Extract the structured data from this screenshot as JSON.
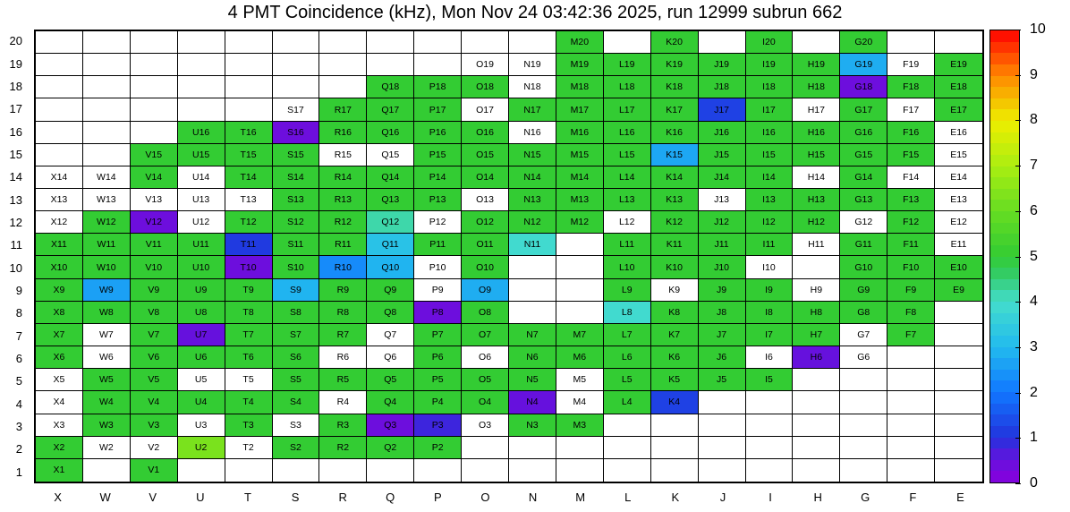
{
  "chart_data": {
    "type": "heatmap",
    "title": "4 PMT Coincidence (kHz), Mon Nov 24 03:42:36 2025, run 12999 subrun 662",
    "columns": [
      "X",
      "W",
      "V",
      "U",
      "T",
      "S",
      "R",
      "Q",
      "P",
      "O",
      "N",
      "M",
      "L",
      "K",
      "J",
      "I",
      "H",
      "G",
      "F",
      "E"
    ],
    "row_min": 1,
    "row_max": 20,
    "colorbar": {
      "min": 0,
      "max": 10,
      "tick_labels": [
        "0",
        "1",
        "2",
        "3",
        "4",
        "5",
        "6",
        "7",
        "8",
        "9",
        "10"
      ]
    },
    "empty_color": "#ffffff",
    "grid_line_color": "#000000",
    "palette_stops": [
      [
        0.0,
        "#8800dd"
      ],
      [
        0.5,
        "#6611dd"
      ],
      [
        1.0,
        "#2233dd"
      ],
      [
        2.0,
        "#1177ff"
      ],
      [
        3.0,
        "#22bbee"
      ],
      [
        4.0,
        "#44ddcc"
      ],
      [
        4.6,
        "#33cc66"
      ],
      [
        5.0,
        "#33cc33"
      ],
      [
        6.0,
        "#66dd22"
      ],
      [
        7.0,
        "#aaee11"
      ],
      [
        8.0,
        "#eeee00"
      ],
      [
        9.0,
        "#ff8800"
      ],
      [
        10.0,
        "#ff0000"
      ]
    ],
    "cells": [
      [
        "M20",
        5
      ],
      [
        "K20",
        5
      ],
      [
        "I20",
        5
      ],
      [
        "G20",
        5
      ],
      [
        "O19",
        null
      ],
      [
        "N19",
        null
      ],
      [
        "M19",
        5
      ],
      [
        "L19",
        5
      ],
      [
        "K19",
        5
      ],
      [
        "J19",
        5
      ],
      [
        "I19",
        5
      ],
      [
        "H19",
        5
      ],
      [
        "G19",
        2.8
      ],
      [
        "F19",
        null
      ],
      [
        "E19",
        5
      ],
      [
        "Q18",
        5
      ],
      [
        "P18",
        5
      ],
      [
        "O18",
        5
      ],
      [
        "N18",
        null
      ],
      [
        "M18",
        5
      ],
      [
        "L18",
        5
      ],
      [
        "K18",
        5
      ],
      [
        "J18",
        5
      ],
      [
        "I18",
        5
      ],
      [
        "H18",
        5
      ],
      [
        "G18",
        0.4
      ],
      [
        "F18",
        5
      ],
      [
        "E18",
        5
      ],
      [
        "S17",
        null
      ],
      [
        "R17",
        5
      ],
      [
        "Q17",
        5
      ],
      [
        "P17",
        5
      ],
      [
        "O17",
        null
      ],
      [
        "N17",
        5
      ],
      [
        "M17",
        5
      ],
      [
        "L17",
        5
      ],
      [
        "K17",
        5
      ],
      [
        "J17",
        1.2
      ],
      [
        "I17",
        5
      ],
      [
        "H17",
        null
      ],
      [
        "G17",
        5
      ],
      [
        "F17",
        null
      ],
      [
        "E17",
        5
      ],
      [
        "U16",
        5
      ],
      [
        "T16",
        5
      ],
      [
        "S16",
        0.4
      ],
      [
        "R16",
        5
      ],
      [
        "Q16",
        5
      ],
      [
        "P16",
        5
      ],
      [
        "O16",
        5
      ],
      [
        "N16",
        null
      ],
      [
        "M16",
        5
      ],
      [
        "L16",
        5
      ],
      [
        "K16",
        5
      ],
      [
        "J16",
        5
      ],
      [
        "I16",
        5
      ],
      [
        "H16",
        5
      ],
      [
        "G16",
        5
      ],
      [
        "F16",
        5
      ],
      [
        "E16",
        null
      ],
      [
        "V15",
        5
      ],
      [
        "U15",
        5
      ],
      [
        "T15",
        5
      ],
      [
        "S15",
        5
      ],
      [
        "R15",
        null
      ],
      [
        "Q15",
        null
      ],
      [
        "P15",
        5
      ],
      [
        "O15",
        5
      ],
      [
        "N15",
        5
      ],
      [
        "M15",
        5
      ],
      [
        "L15",
        5
      ],
      [
        "K15",
        2.7
      ],
      [
        "J15",
        5
      ],
      [
        "I15",
        5
      ],
      [
        "H15",
        5
      ],
      [
        "G15",
        5
      ],
      [
        "F15",
        5
      ],
      [
        "E15",
        null
      ],
      [
        "X14",
        null
      ],
      [
        "W14",
        null
      ],
      [
        "V14",
        5
      ],
      [
        "U14",
        null
      ],
      [
        "T14",
        5
      ],
      [
        "S14",
        5
      ],
      [
        "R14",
        5
      ],
      [
        "Q14",
        5
      ],
      [
        "P14",
        5
      ],
      [
        "O14",
        5
      ],
      [
        "N14",
        5
      ],
      [
        "M14",
        5
      ],
      [
        "L14",
        5
      ],
      [
        "K14",
        5
      ],
      [
        "J14",
        5
      ],
      [
        "I14",
        5
      ],
      [
        "H14",
        null
      ],
      [
        "G14",
        5
      ],
      [
        "F14",
        null
      ],
      [
        "E14",
        null
      ],
      [
        "X13",
        null
      ],
      [
        "W13",
        null
      ],
      [
        "V13",
        null
      ],
      [
        "U13",
        null
      ],
      [
        "T13",
        null
      ],
      [
        "S13",
        5
      ],
      [
        "R13",
        5
      ],
      [
        "Q13",
        5
      ],
      [
        "P13",
        5
      ],
      [
        "O13",
        null
      ],
      [
        "N13",
        5
      ],
      [
        "M13",
        5
      ],
      [
        "L13",
        5
      ],
      [
        "K13",
        5
      ],
      [
        "J13",
        null
      ],
      [
        "I13",
        5
      ],
      [
        "H13",
        5
      ],
      [
        "G13",
        5
      ],
      [
        "F13",
        5
      ],
      [
        "E13",
        null
      ],
      [
        "X12",
        null
      ],
      [
        "W12",
        5
      ],
      [
        "V12",
        0.4
      ],
      [
        "U12",
        null
      ],
      [
        "T12",
        5
      ],
      [
        "S12",
        5
      ],
      [
        "R12",
        5
      ],
      [
        "Q12",
        4.2
      ],
      [
        "P12",
        null
      ],
      [
        "O12",
        5
      ],
      [
        "N12",
        5
      ],
      [
        "M12",
        5
      ],
      [
        "L12",
        null
      ],
      [
        "K12",
        5
      ],
      [
        "J12",
        5
      ],
      [
        "I12",
        5
      ],
      [
        "H12",
        5
      ],
      [
        "G12",
        null
      ],
      [
        "F12",
        5
      ],
      [
        "E12",
        null
      ],
      [
        "X11",
        5
      ],
      [
        "W11",
        5
      ],
      [
        "V11",
        5
      ],
      [
        "U11",
        5
      ],
      [
        "T11",
        1.1
      ],
      [
        "S11",
        5
      ],
      [
        "R11",
        5
      ],
      [
        "Q11",
        3.2
      ],
      [
        "P11",
        5
      ],
      [
        "O11",
        5
      ],
      [
        "N11",
        3.9
      ],
      [
        "L11",
        5
      ],
      [
        "K11",
        5
      ],
      [
        "J11",
        5
      ],
      [
        "I11",
        5
      ],
      [
        "H11",
        null
      ],
      [
        "G11",
        5
      ],
      [
        "F11",
        5
      ],
      [
        "E11",
        null
      ],
      [
        "X10",
        5
      ],
      [
        "W10",
        5
      ],
      [
        "V10",
        5
      ],
      [
        "U10",
        5
      ],
      [
        "T10",
        0.4
      ],
      [
        "S10",
        5
      ],
      [
        "R10",
        2.3
      ],
      [
        "Q10",
        2.9
      ],
      [
        "P10",
        null
      ],
      [
        "O10",
        5
      ],
      [
        "L10",
        5
      ],
      [
        "K10",
        5
      ],
      [
        "J10",
        5
      ],
      [
        "I10",
        null
      ],
      [
        "G10",
        5
      ],
      [
        "F10",
        5
      ],
      [
        "E10",
        5
      ],
      [
        "X9",
        5
      ],
      [
        "W9",
        2.6
      ],
      [
        "V9",
        5
      ],
      [
        "U9",
        5
      ],
      [
        "T9",
        5
      ],
      [
        "S9",
        2.9
      ],
      [
        "R9",
        5
      ],
      [
        "Q9",
        5
      ],
      [
        "P9",
        null
      ],
      [
        "O9",
        2.8
      ],
      [
        "L9",
        5
      ],
      [
        "K9",
        null
      ],
      [
        "J9",
        5
      ],
      [
        "I9",
        5
      ],
      [
        "H9",
        null
      ],
      [
        "G9",
        5
      ],
      [
        "F9",
        5
      ],
      [
        "E9",
        5
      ],
      [
        "X8",
        5
      ],
      [
        "W8",
        5
      ],
      [
        "V8",
        5
      ],
      [
        "U8",
        5
      ],
      [
        "T8",
        5
      ],
      [
        "S8",
        5
      ],
      [
        "R8",
        5
      ],
      [
        "Q8",
        5
      ],
      [
        "P8",
        0.4
      ],
      [
        "O8",
        5
      ],
      [
        "L8",
        3.9
      ],
      [
        "K8",
        5
      ],
      [
        "J8",
        5
      ],
      [
        "I8",
        5
      ],
      [
        "H8",
        5
      ],
      [
        "G8",
        5
      ],
      [
        "F8",
        5
      ],
      [
        "X7",
        5
      ],
      [
        "W7",
        null
      ],
      [
        "V7",
        5
      ],
      [
        "U7",
        0.5
      ],
      [
        "T7",
        5
      ],
      [
        "S7",
        5
      ],
      [
        "R7",
        5
      ],
      [
        "Q7",
        null
      ],
      [
        "P7",
        5
      ],
      [
        "O7",
        5
      ],
      [
        "N7",
        5
      ],
      [
        "M7",
        5
      ],
      [
        "L7",
        5
      ],
      [
        "K7",
        5
      ],
      [
        "J7",
        5
      ],
      [
        "I7",
        5
      ],
      [
        "H7",
        5
      ],
      [
        "G7",
        null
      ],
      [
        "F7",
        5
      ],
      [
        "X6",
        5
      ],
      [
        "W6",
        null
      ],
      [
        "V6",
        5
      ],
      [
        "U6",
        5
      ],
      [
        "T6",
        5
      ],
      [
        "S6",
        5
      ],
      [
        "R6",
        null
      ],
      [
        "Q6",
        null
      ],
      [
        "P6",
        5
      ],
      [
        "O6",
        null
      ],
      [
        "N6",
        5
      ],
      [
        "M6",
        5
      ],
      [
        "L6",
        5
      ],
      [
        "K6",
        5
      ],
      [
        "J6",
        5
      ],
      [
        "I6",
        null
      ],
      [
        "H6",
        0.5
      ],
      [
        "G6",
        null
      ],
      [
        "X5",
        null
      ],
      [
        "W5",
        5
      ],
      [
        "V5",
        5
      ],
      [
        "U5",
        null
      ],
      [
        "T5",
        null
      ],
      [
        "S5",
        5
      ],
      [
        "R5",
        5
      ],
      [
        "Q5",
        5
      ],
      [
        "P5",
        5
      ],
      [
        "O5",
        5
      ],
      [
        "N5",
        5
      ],
      [
        "M5",
        null
      ],
      [
        "L5",
        5
      ],
      [
        "K5",
        5
      ],
      [
        "J5",
        5
      ],
      [
        "I5",
        5
      ],
      [
        "X4",
        null
      ],
      [
        "W4",
        5
      ],
      [
        "V4",
        5
      ],
      [
        "U4",
        5
      ],
      [
        "T4",
        5
      ],
      [
        "S4",
        5
      ],
      [
        "R4",
        null
      ],
      [
        "Q4",
        5
      ],
      [
        "P4",
        5
      ],
      [
        "O4",
        5
      ],
      [
        "N4",
        0.5
      ],
      [
        "M4",
        null
      ],
      [
        "L4",
        5
      ],
      [
        "K4",
        1.2
      ],
      [
        "X3",
        null
      ],
      [
        "W3",
        5
      ],
      [
        "V3",
        5
      ],
      [
        "U3",
        null
      ],
      [
        "T3",
        5
      ],
      [
        "S3",
        null
      ],
      [
        "R3",
        5
      ],
      [
        "Q3",
        0.4
      ],
      [
        "P3",
        0.8
      ],
      [
        "O3",
        null
      ],
      [
        "N3",
        5
      ],
      [
        "M3",
        5
      ],
      [
        "X2",
        5
      ],
      [
        "W2",
        null
      ],
      [
        "V2",
        null
      ],
      [
        "U2",
        6.3
      ],
      [
        "T2",
        null
      ],
      [
        "S2",
        5
      ],
      [
        "R2",
        5
      ],
      [
        "Q2",
        5
      ],
      [
        "P2",
        5
      ],
      [
        "X1",
        5
      ],
      [
        "V1",
        5
      ]
    ]
  }
}
